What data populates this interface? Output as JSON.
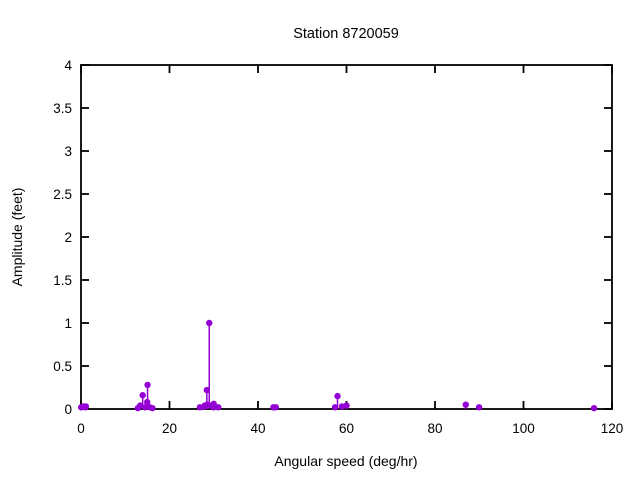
{
  "chart_data": {
    "type": "scatter",
    "style": "impulse-stems-with-points",
    "title": "Station 8720059",
    "xlabel": "Angular speed (deg/hr)",
    "ylabel": "Amplitude (feet)",
    "xlim": [
      0,
      120
    ],
    "ylim": [
      0,
      4
    ],
    "xticks": [
      0,
      20,
      40,
      60,
      80,
      100,
      120
    ],
    "yticks": [
      0,
      0.5,
      1,
      1.5,
      2,
      2.5,
      3,
      3.5,
      4
    ],
    "grid": false,
    "legend": "none",
    "colors": {
      "marker": "#9400d3",
      "axis": "#000000",
      "background": "#ffffff",
      "text": "#000000"
    },
    "points": [
      {
        "x": 0.04,
        "y": 0.02
      },
      {
        "x": 0.08,
        "y": 0.02
      },
      {
        "x": 0.54,
        "y": 0.03
      },
      {
        "x": 1.02,
        "y": 0.02
      },
      {
        "x": 1.1,
        "y": 0.03
      },
      {
        "x": 12.85,
        "y": 0.01
      },
      {
        "x": 13.4,
        "y": 0.04
      },
      {
        "x": 13.94,
        "y": 0.16
      },
      {
        "x": 14.5,
        "y": 0.02
      },
      {
        "x": 14.96,
        "y": 0.08
      },
      {
        "x": 15.04,
        "y": 0.28
      },
      {
        "x": 15.59,
        "y": 0.02
      },
      {
        "x": 16.14,
        "y": 0.01
      },
      {
        "x": 26.87,
        "y": 0.02
      },
      {
        "x": 27.9,
        "y": 0.03
      },
      {
        "x": 27.97,
        "y": 0.04
      },
      {
        "x": 28.44,
        "y": 0.22
      },
      {
        "x": 28.51,
        "y": 0.05
      },
      {
        "x": 28.98,
        "y": 1.0
      },
      {
        "x": 29.53,
        "y": 0.04
      },
      {
        "x": 29.96,
        "y": 0.02
      },
      {
        "x": 30.0,
        "y": 0.06
      },
      {
        "x": 30.08,
        "y": 0.03
      },
      {
        "x": 31.02,
        "y": 0.02
      },
      {
        "x": 43.48,
        "y": 0.02
      },
      {
        "x": 44.03,
        "y": 0.02
      },
      {
        "x": 57.42,
        "y": 0.02
      },
      {
        "x": 57.97,
        "y": 0.15
      },
      {
        "x": 58.98,
        "y": 0.03
      },
      {
        "x": 60.0,
        "y": 0.04
      },
      {
        "x": 86.95,
        "y": 0.05
      },
      {
        "x": 89.97,
        "y": 0.02
      },
      {
        "x": 115.94,
        "y": 0.01
      }
    ]
  }
}
